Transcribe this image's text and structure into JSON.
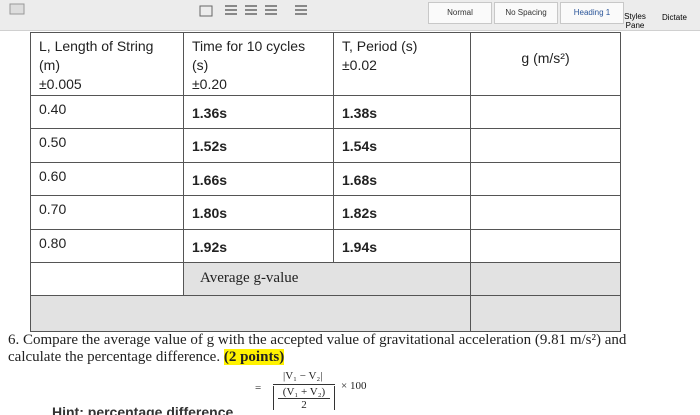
{
  "toolbar": {
    "styles": [
      "Normal",
      "No Spacing",
      "Heading 1"
    ],
    "styles_pane": [
      "Styles",
      "Pane"
    ],
    "dictate": "Dictate"
  },
  "table": {
    "header": [
      [
        "L, Length of String",
        "(m)",
        "±0.005"
      ],
      [
        "Time for 10 cycles (s)",
        "±0.20"
      ],
      [
        "T, Period (s)",
        "±0.02"
      ],
      [
        "g (m/s²)"
      ]
    ],
    "rows": [
      [
        "0.40",
        "1.36s",
        "1.38s"
      ],
      [
        "0.50",
        "1.52s",
        "1.54s"
      ],
      [
        "0.60",
        "1.66s",
        "1.68s"
      ],
      [
        "0.70",
        "1.80s",
        "1.82s"
      ],
      [
        "0.80",
        "1.92s",
        "1.94s"
      ]
    ],
    "average_label": "Average g-value"
  },
  "question": {
    "number": "6.",
    "text": "Compare the average value of g with the accepted value of gravitational acceleration (9.81 m/s²) and calculate the percentage difference.",
    "points": "(2 points)"
  },
  "formula": {
    "equals": "=",
    "numerator": "|V₁ − V₂|",
    "denominator": "(V₁ + V₂)",
    "divisor": "2",
    "multiplier": "× 100"
  },
  "hint": "Hint: percentage difference"
}
